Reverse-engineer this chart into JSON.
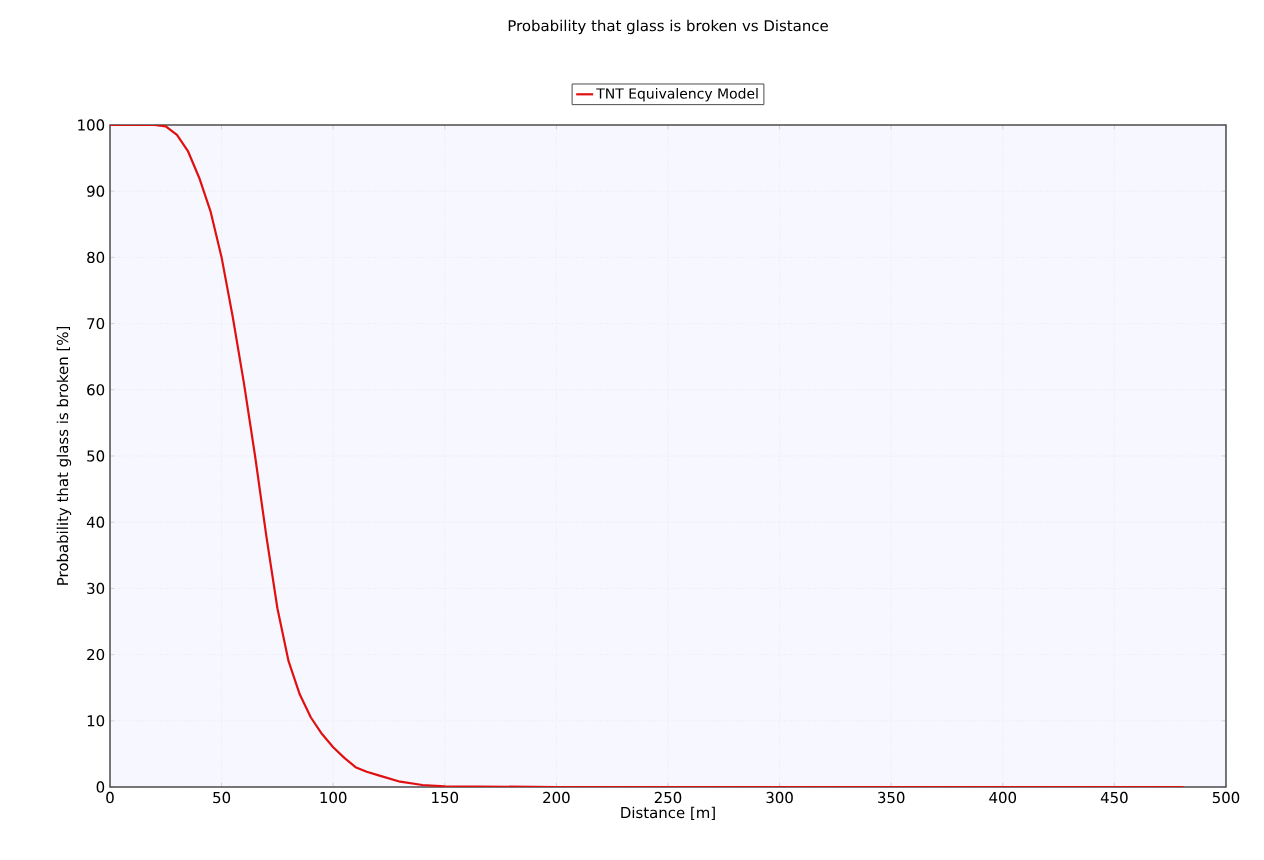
{
  "chart_data": {
    "type": "line",
    "title": "Probability that glass is broken vs Distance",
    "xlabel": "Distance [m]",
    "ylabel": "Probability that glass is broken [%]",
    "x": [
      0,
      20,
      25,
      30,
      35,
      40,
      45,
      50,
      55,
      60,
      65,
      70,
      75,
      80,
      85,
      90,
      95,
      100,
      105,
      110,
      115,
      120,
      130,
      140,
      150,
      200,
      300,
      400,
      481
    ],
    "series": [
      {
        "name": "TNT Equivalency Model",
        "color": "#e01010",
        "values": [
          100,
          100,
          99.8,
          98.5,
          96,
          92,
          87,
          80,
          71,
          61,
          50,
          38,
          27,
          19,
          14,
          10.5,
          8,
          6,
          4.4,
          3,
          2.3,
          1.8,
          0.8,
          0.3,
          0.1,
          0,
          0,
          0,
          0
        ]
      }
    ],
    "xlim": [
      0,
      500
    ],
    "ylim": [
      0,
      100
    ],
    "xticks": [
      0,
      50,
      100,
      150,
      200,
      250,
      300,
      350,
      400,
      450,
      500
    ],
    "yticks": [
      0,
      10,
      20,
      30,
      40,
      50,
      60,
      70,
      80,
      90,
      100
    ],
    "grid": true,
    "legend": "top",
    "marker": "none",
    "line_style": "solid"
  }
}
